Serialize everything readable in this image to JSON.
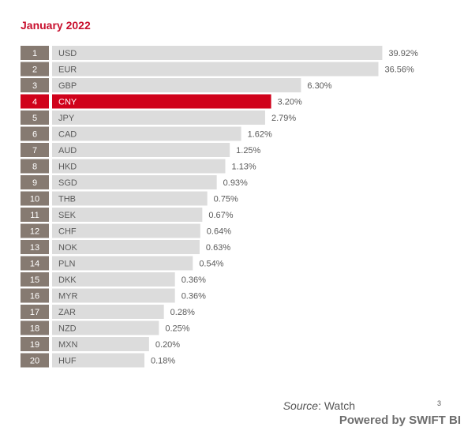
{
  "chart_data": {
    "type": "bar",
    "orientation": "horizontal",
    "title": "January 2022",
    "ranks": [
      "1",
      "2",
      "3",
      "4",
      "5",
      "6",
      "7",
      "8",
      "9",
      "10",
      "11",
      "12",
      "13",
      "14",
      "15",
      "16",
      "17",
      "18",
      "19",
      "20"
    ],
    "categories": [
      "USD",
      "EUR",
      "GBP",
      "CNY",
      "JPY",
      "CAD",
      "AUD",
      "HKD",
      "SGD",
      "THB",
      "SEK",
      "CHF",
      "NOK",
      "PLN",
      "DKK",
      "MYR",
      "ZAR",
      "NZD",
      "MXN",
      "HUF"
    ],
    "values": [
      39.92,
      36.56,
      6.3,
      3.2,
      2.79,
      1.62,
      1.25,
      1.13,
      0.93,
      0.75,
      0.67,
      0.64,
      0.63,
      0.54,
      0.36,
      0.36,
      0.28,
      0.25,
      0.2,
      0.18
    ],
    "value_labels": [
      "39.92%",
      "36.56%",
      "6.30%",
      "3.20%",
      "2.79%",
      "1.62%",
      "1.25%",
      "1.13%",
      "0.93%",
      "0.75%",
      "0.67%",
      "0.64%",
      "0.63%",
      "0.54%",
      "0.36%",
      "0.36%",
      "0.28%",
      "0.25%",
      "0.20%",
      "0.18%"
    ],
    "highlight_category": "CNY",
    "scale": "non-linear (bars not drawn to scale)",
    "legend": "none",
    "grid": false,
    "colors": {
      "bar": "#dcdcdc",
      "rank_box": "#867a71",
      "highlight": "#d0021b",
      "label_text": "#5a5a5a",
      "rank_text": "#ffffff",
      "title": "#c8102e"
    }
  },
  "footer": {
    "source_label": "Source",
    "source_sep": ":",
    "source_value": " Watch",
    "page_number": "3",
    "powered_by": "Powered by SWIFT BI"
  }
}
